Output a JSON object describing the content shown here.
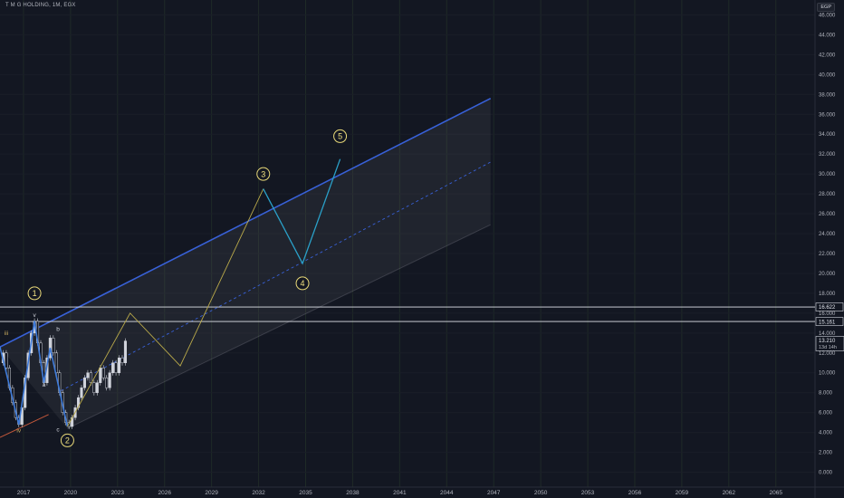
{
  "header": {
    "symbol": "T M G HOLDING, 1M, EGX",
    "currency": "EGP"
  },
  "chart_data": {
    "type": "line",
    "y_ticks": [
      "0.000",
      "2.000",
      "4.000",
      "6.000",
      "8.000",
      "10.000",
      "12.000",
      "14.000",
      "16.000",
      "18.000",
      "20.000",
      "22.000",
      "24.000",
      "26.000",
      "28.000",
      "30.000",
      "32.000",
      "34.000",
      "36.000",
      "38.000",
      "40.000",
      "42.000",
      "44.000",
      "46.000"
    ],
    "x_ticks": [
      "2017",
      "2020",
      "2023",
      "2026",
      "2029",
      "2032",
      "2035",
      "2038",
      "2041",
      "2044",
      "2047",
      "2050",
      "2053",
      "2056",
      "2059",
      "2062",
      "2065"
    ],
    "ylim": [
      -1.5,
      47.5
    ],
    "xlim": [
      2015.5,
      2067.5
    ],
    "hlines": [
      {
        "label": "16.622",
        "value": 16.622
      },
      {
        "label": "15.161",
        "value": 15.161
      }
    ],
    "last_price": {
      "label": "13.210",
      "value": 13.21,
      "countdown": "13d 14h"
    },
    "wave_labels": [
      {
        "text": "1",
        "x": 2017.7,
        "y": 18.0,
        "circled": true
      },
      {
        "text": "2",
        "x": 2019.8,
        "y": 3.2,
        "circled": true
      },
      {
        "text": "3",
        "x": 2032.3,
        "y": 30.0,
        "circled": true
      },
      {
        "text": "4",
        "x": 2034.8,
        "y": 19.0,
        "circled": true
      },
      {
        "text": "5",
        "x": 2037.2,
        "y": 33.8,
        "circled": true
      },
      {
        "text": "iii",
        "x": 2015.9,
        "y": 13.8,
        "circled": false
      },
      {
        "text": "iv",
        "x": 2016.7,
        "y": 4.0,
        "circled": false
      },
      {
        "text": "v",
        "x": 2017.7,
        "y": 15.6,
        "circled": false
      },
      {
        "text": "a",
        "x": 2018.3,
        "y": 8.6,
        "circled": false
      },
      {
        "text": "b",
        "x": 2019.2,
        "y": 14.2,
        "circled": false
      },
      {
        "text": "c",
        "x": 2019.2,
        "y": 4.1,
        "circled": false
      }
    ],
    "projection_yellow": [
      [
        2019.8,
        4.6
      ],
      [
        2023.8,
        16.0
      ],
      [
        2027.0,
        10.7
      ],
      [
        2032.3,
        28.5
      ]
    ],
    "projection_blue": [
      [
        2032.3,
        28.5
      ],
      [
        2034.8,
        21.0
      ],
      [
        2037.2,
        31.5
      ]
    ],
    "channel": {
      "upper": [
        [
          2015.5,
          12.6
        ],
        [
          2046.8,
          37.6
        ]
      ],
      "mid": [
        [
          2019.4,
          8.2
        ],
        [
          2046.8,
          31.2
        ]
      ],
      "lower": [
        [
          2019.8,
          4.4
        ],
        [
          2046.8,
          24.9
        ]
      ],
      "fill_right": 2046.8
    },
    "orange_line": [
      [
        2015.5,
        3.5
      ],
      [
        2018.6,
        5.8
      ]
    ],
    "price_series": [
      [
        2015.5,
        11.0
      ],
      [
        2015.7,
        12.0
      ],
      [
        2015.9,
        10.5
      ],
      [
        2016.1,
        8.5
      ],
      [
        2016.3,
        7.0
      ],
      [
        2016.5,
        5.5
      ],
      [
        2016.7,
        4.8
      ],
      [
        2016.9,
        6.5
      ],
      [
        2017.1,
        9.5
      ],
      [
        2017.3,
        12.0
      ],
      [
        2017.5,
        14.0
      ],
      [
        2017.7,
        15.2
      ],
      [
        2017.9,
        13.0
      ],
      [
        2018.1,
        11.0
      ],
      [
        2018.3,
        9.0
      ],
      [
        2018.5,
        11.5
      ],
      [
        2018.7,
        13.5
      ],
      [
        2018.9,
        12.0
      ],
      [
        2019.1,
        10.0
      ],
      [
        2019.3,
        8.0
      ],
      [
        2019.5,
        6.0
      ],
      [
        2019.7,
        5.0
      ],
      [
        2019.9,
        4.6
      ],
      [
        2020.1,
        5.5
      ],
      [
        2020.3,
        6.5
      ],
      [
        2020.5,
        7.5
      ],
      [
        2020.7,
        8.5
      ],
      [
        2020.9,
        9.5
      ],
      [
        2021.1,
        10.0
      ],
      [
        2021.3,
        9.0
      ],
      [
        2021.5,
        8.0
      ],
      [
        2021.7,
        9.0
      ],
      [
        2021.9,
        10.5
      ],
      [
        2022.1,
        9.5
      ],
      [
        2022.3,
        8.5
      ],
      [
        2022.5,
        10.0
      ],
      [
        2022.7,
        11.0
      ],
      [
        2022.9,
        10.0
      ],
      [
        2023.1,
        11.5
      ],
      [
        2023.3,
        11.0
      ],
      [
        2023.5,
        13.2
      ]
    ]
  }
}
